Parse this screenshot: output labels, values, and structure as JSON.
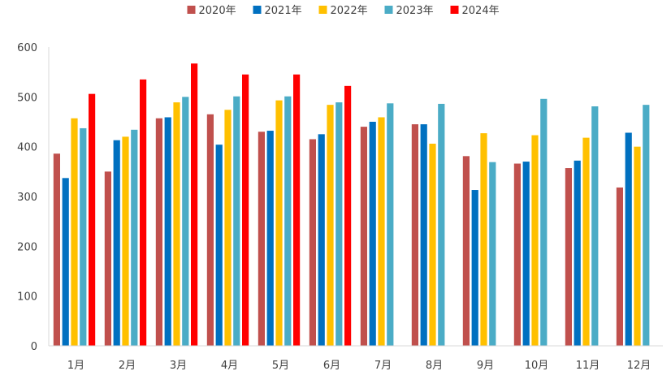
{
  "chart_data": {
    "type": "bar",
    "title": "",
    "xlabel": "",
    "ylabel": "",
    "categories": [
      "1月",
      "2月",
      "3月",
      "4月",
      "5月",
      "6月",
      "7月",
      "8月",
      "9月",
      "10月",
      "11月",
      "12月"
    ],
    "ylim": [
      0,
      600
    ],
    "yticks": [
      0,
      100,
      200,
      300,
      400,
      500,
      600
    ],
    "grid": false,
    "legend_position": "top-center",
    "series": [
      {
        "name": "2020年",
        "color": "#C0504D",
        "values": [
          386,
          350,
          457,
          465,
          430,
          415,
          440,
          445,
          381,
          366,
          357,
          318
        ]
      },
      {
        "name": "2021年",
        "color": "#0070C0",
        "values": [
          337,
          413,
          459,
          404,
          432,
          425,
          450,
          445,
          313,
          370,
          372,
          428
        ]
      },
      {
        "name": "2022年",
        "color": "#FFC000",
        "values": [
          457,
          420,
          489,
          474,
          493,
          484,
          459,
          406,
          427,
          423,
          418,
          400
        ]
      },
      {
        "name": "2023年",
        "color": "#4BACC6",
        "values": [
          437,
          434,
          500,
          501,
          501,
          489,
          487,
          486,
          369,
          496,
          481,
          484
        ]
      },
      {
        "name": "2024年",
        "color": "#FF0000",
        "values": [
          506,
          535,
          567,
          545,
          545,
          522,
          null,
          null,
          null,
          null,
          null,
          null
        ]
      }
    ]
  }
}
